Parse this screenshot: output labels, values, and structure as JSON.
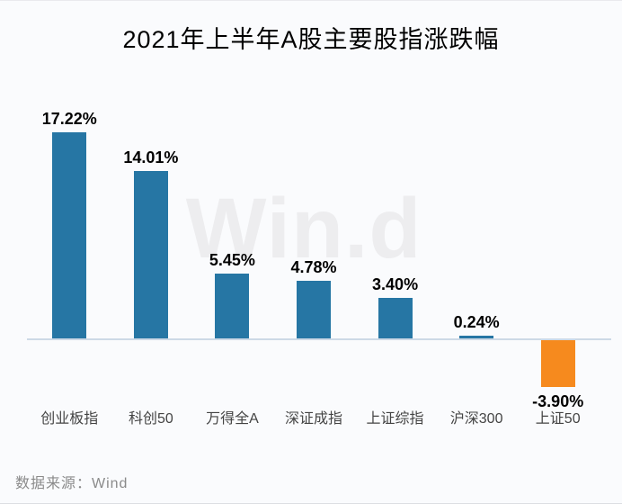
{
  "title": "2021年上半年A股主要股指涨跌幅",
  "watermark": "Win.d",
  "footer": {
    "source_label": "数据来源：Wind"
  },
  "colors": {
    "background": "#FAFBFD",
    "positive_bar": "#2676A4",
    "negative_bar": "#F68A1E",
    "axis_line": "#CDD9E6",
    "title_text": "#000000",
    "value_label_text": "#000000",
    "category_label_text": "#444444",
    "watermark_text": "#EDEDEF",
    "footer_text": "#8A8A8A"
  },
  "chart_data": {
    "type": "bar",
    "title": "2021年上半年A股主要股指涨跌幅",
    "categories": [
      "创业板指",
      "科创50",
      "万得全A",
      "深证成指",
      "上证综指",
      "沪深300",
      "上证50"
    ],
    "values": [
      17.22,
      14.01,
      5.45,
      4.78,
      3.4,
      0.24,
      -3.9
    ],
    "value_labels": [
      "17.22%",
      "14.01%",
      "5.45%",
      "4.78%",
      "3.40%",
      "0.24%",
      "-3.90%"
    ],
    "xlabel": "",
    "ylabel": "",
    "ylim": [
      -6,
      20
    ],
    "grid": false,
    "legend_position": "none",
    "source": "Wind",
    "watermark": "Win.d"
  }
}
